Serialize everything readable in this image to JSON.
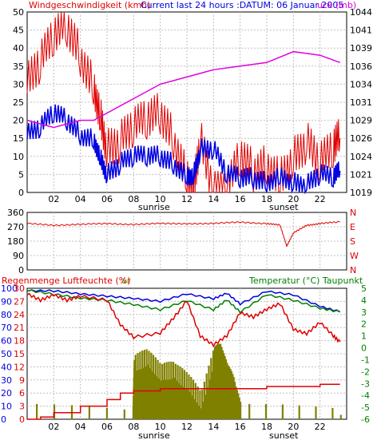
{
  "header": {
    "title_wind": "Windgeschwindigkeit (kmh)",
    "title_center": "Current last 24 hours :DATUM: 06 Januar 2005",
    "title_pressure_suffix": "uck (mb)"
  },
  "colors": {
    "wind": "#e00000",
    "gust": "#0000e0",
    "pressure": "#e000e0",
    "temperature": "#008000",
    "humidity": "#0000e0",
    "dewpoint": "#e00000",
    "rain_total": "#e00000",
    "rain_rate": "#808000",
    "frame": "#000000"
  },
  "chart_data": [
    {
      "type": "line",
      "title": "Windgeschwindigkeit (kmh) / Luftdruck (mb)",
      "x_ticks": [
        "02",
        "04",
        "06",
        "08",
        "10",
        "12",
        "14",
        "16",
        "18",
        "20",
        "22"
      ],
      "x_annotations": [
        "sunrise",
        "sunset"
      ],
      "y_left_ticks": [
        "0",
        "5",
        "10",
        "15",
        "20",
        "25",
        "30",
        "35",
        "40",
        "45",
        "50"
      ],
      "y_right_ticks": [
        "1019",
        "1021",
        "1024",
        "1026",
        "1029",
        "1031",
        "1034",
        "1036",
        "1039",
        "1041",
        "1044"
      ],
      "ylim_left": [
        0,
        50
      ],
      "ylim_right": [
        1019,
        1044
      ],
      "series": [
        {
          "name": "Windgeschwindigkeit",
          "axis": "left",
          "x": [
            0,
            1,
            2,
            3,
            4,
            5,
            5.5,
            6,
            7,
            8,
            9,
            10,
            11,
            12,
            12.5,
            13,
            14,
            15,
            16,
            17,
            18,
            19,
            20,
            21,
            22,
            23,
            23.5
          ],
          "values": [
            30,
            36,
            43,
            46,
            38,
            30,
            22,
            12,
            14,
            18,
            20,
            22,
            15,
            5,
            2,
            15,
            0,
            0,
            10,
            6,
            8,
            5,
            10,
            14,
            8,
            12,
            15
          ]
        },
        {
          "name": "Böen",
          "axis": "left",
          "x": [
            0,
            1,
            2,
            3,
            4,
            5,
            5.5,
            6,
            7,
            8,
            9,
            10,
            11,
            12,
            12.5,
            13,
            14,
            15,
            16,
            17,
            18,
            19,
            20,
            21,
            22,
            23,
            23.5
          ],
          "values": [
            16,
            18,
            22,
            20,
            16,
            15,
            10,
            5,
            8,
            10,
            10,
            10,
            8,
            5,
            5,
            12,
            12,
            5,
            4,
            4,
            3,
            5,
            3,
            2,
            5,
            4,
            6
          ]
        },
        {
          "name": "Luftdruck",
          "axis": "right",
          "x": [
            0,
            2,
            4,
            5,
            6,
            8,
            10,
            12,
            14,
            16,
            18,
            20,
            22,
            23.5
          ],
          "values": [
            1029,
            1028,
            1029,
            1029,
            1030,
            1032,
            1034,
            1035,
            1036,
            1036.5,
            1037,
            1038.5,
            1038,
            1037
          ]
        }
      ]
    },
    {
      "type": "line",
      "title": "Windrichtung",
      "x_ticks": [],
      "y_left_ticks": [
        "0",
        "90",
        "180",
        "270",
        "360"
      ],
      "y_right_ticks": [
        "N",
        "W",
        "S",
        "E",
        "N"
      ],
      "ylim": [
        0,
        360
      ],
      "series": [
        {
          "name": "Windrichtung",
          "x": [
            0,
            2,
            4,
            6,
            8,
            10,
            12,
            14,
            16,
            18,
            19,
            19.5,
            20,
            21,
            22,
            23.5
          ],
          "values": [
            290,
            280,
            285,
            290,
            285,
            290,
            290,
            290,
            300,
            290,
            280,
            150,
            230,
            280,
            290,
            300
          ]
        }
      ]
    },
    {
      "type": "line",
      "title": "Regenmenge Luftfeuchte (%) / Temperatur (°C) Taupunkt",
      "x_ticks": [
        "02",
        "04",
        "06",
        "08",
        "10",
        "12",
        "14",
        "16",
        "18",
        "20",
        "22"
      ],
      "x_annotations": [
        "sunrise",
        "sunset"
      ],
      "y_left_ticks_humidity": [
        "0",
        "10",
        "20",
        "30",
        "40",
        "50",
        "60",
        "70",
        "80",
        "90",
        "100"
      ],
      "y_left_ticks_rain": [
        "0",
        "3",
        "6",
        "9",
        "12",
        "15",
        "18",
        "21",
        "24",
        "27",
        "30"
      ],
      "y_right_ticks": [
        "-6",
        "-5",
        "-4",
        "-3",
        "-2",
        "-1",
        "0",
        "1",
        "2",
        "3",
        "4",
        "5"
      ],
      "ylim_left": [
        0,
        100
      ],
      "ylim_right": [
        -6,
        5
      ],
      "series": [
        {
          "name": "Luftfeuchte",
          "x": [
            0,
            2,
            4,
            6,
            8,
            10,
            12,
            14,
            15,
            16,
            18,
            20,
            22,
            23.5
          ],
          "values": [
            98,
            98,
            96,
            94,
            92,
            90,
            96,
            92,
            96,
            88,
            98,
            95,
            86,
            82
          ]
        },
        {
          "name": "Temperatur",
          "x": [
            0,
            2,
            4,
            6,
            8,
            10,
            12,
            14,
            15,
            16,
            18,
            20,
            22,
            23.5
          ],
          "values": [
            4.8,
            4.5,
            4.2,
            4,
            3.6,
            3.2,
            4,
            3.2,
            4,
            3,
            4.5,
            4,
            3.3,
            3
          ]
        },
        {
          "name": "Taupunkt",
          "x": [
            0,
            1,
            2,
            3,
            4,
            6,
            7,
            8,
            10,
            11,
            12,
            13,
            14,
            15,
            16,
            17,
            18,
            19,
            20,
            21,
            22,
            23,
            23.5
          ],
          "values": [
            4.5,
            4,
            4.5,
            4,
            4.3,
            4,
            2,
            0.9,
            1.2,
            2.5,
            4,
            1,
            0.2,
            1,
            3,
            2.6,
            3.2,
            3.7,
            1.6,
            1.2,
            2.1,
            1,
            0.5
          ]
        },
        {
          "name": "Regenmenge",
          "x": [
            0,
            1,
            2,
            4,
            6,
            7,
            8,
            10,
            12,
            16,
            18,
            20,
            22,
            23.5
          ],
          "values": [
            0,
            0.5,
            1.5,
            3,
            4.5,
            6,
            6.5,
            7,
            7,
            7,
            7.5,
            7.5,
            8,
            8
          ]
        },
        {
          "name": "Regenrate",
          "x": [
            0,
            7.9,
            8,
            9,
            10,
            11,
            12,
            13,
            14,
            14.5,
            15,
            15.5,
            16,
            23.5
          ],
          "values": [
            1,
            1,
            12,
            15,
            10,
            12,
            8,
            5,
            14,
            16,
            10,
            8,
            1,
            1
          ]
        }
      ]
    }
  ],
  "panel1": {
    "x_ticks": [
      "02",
      "04",
      "06",
      "08",
      "10",
      "12",
      "14",
      "16",
      "18",
      "20",
      "22"
    ],
    "y_left": [
      "0",
      "5",
      "10",
      "15",
      "20",
      "25",
      "30",
      "35",
      "40",
      "45",
      "50"
    ],
    "y_right": [
      "1019",
      "1021",
      "1024",
      "1026",
      "1029",
      "1031",
      "1034",
      "1036",
      "1039",
      "1041",
      "1044"
    ],
    "sunrise": "sunrise",
    "sunset": "sunset"
  },
  "panel2": {
    "y_left": [
      "0",
      "90",
      "180",
      "270",
      "360"
    ],
    "y_right": [
      "N",
      "W",
      "S",
      "E",
      "N"
    ]
  },
  "panel3": {
    "title_left": "Regenmenge Luftfeuchte (%)",
    "title_right": "Temperatur (°C) Taupunkt",
    "title_rain_fragment": "ar",
    "y_left_hum": [
      "0",
      "10",
      "20",
      "30",
      "40",
      "50",
      "60",
      "70",
      "80",
      "90",
      "100"
    ],
    "y_left_rain": [
      "0",
      "3",
      "6",
      "9",
      "12",
      "15",
      "18",
      "21",
      "24",
      "27",
      "30"
    ],
    "y_right": [
      "-6",
      "-5",
      "-4",
      "-3",
      "-2",
      "-1",
      "0",
      "1",
      "2",
      "3",
      "4",
      "5"
    ],
    "x_ticks": [
      "02",
      "04",
      "06",
      "08",
      "10",
      "12",
      "14",
      "16",
      "18",
      "20",
      "22"
    ],
    "sunrise": "sunrise",
    "sunset": "sunset"
  }
}
